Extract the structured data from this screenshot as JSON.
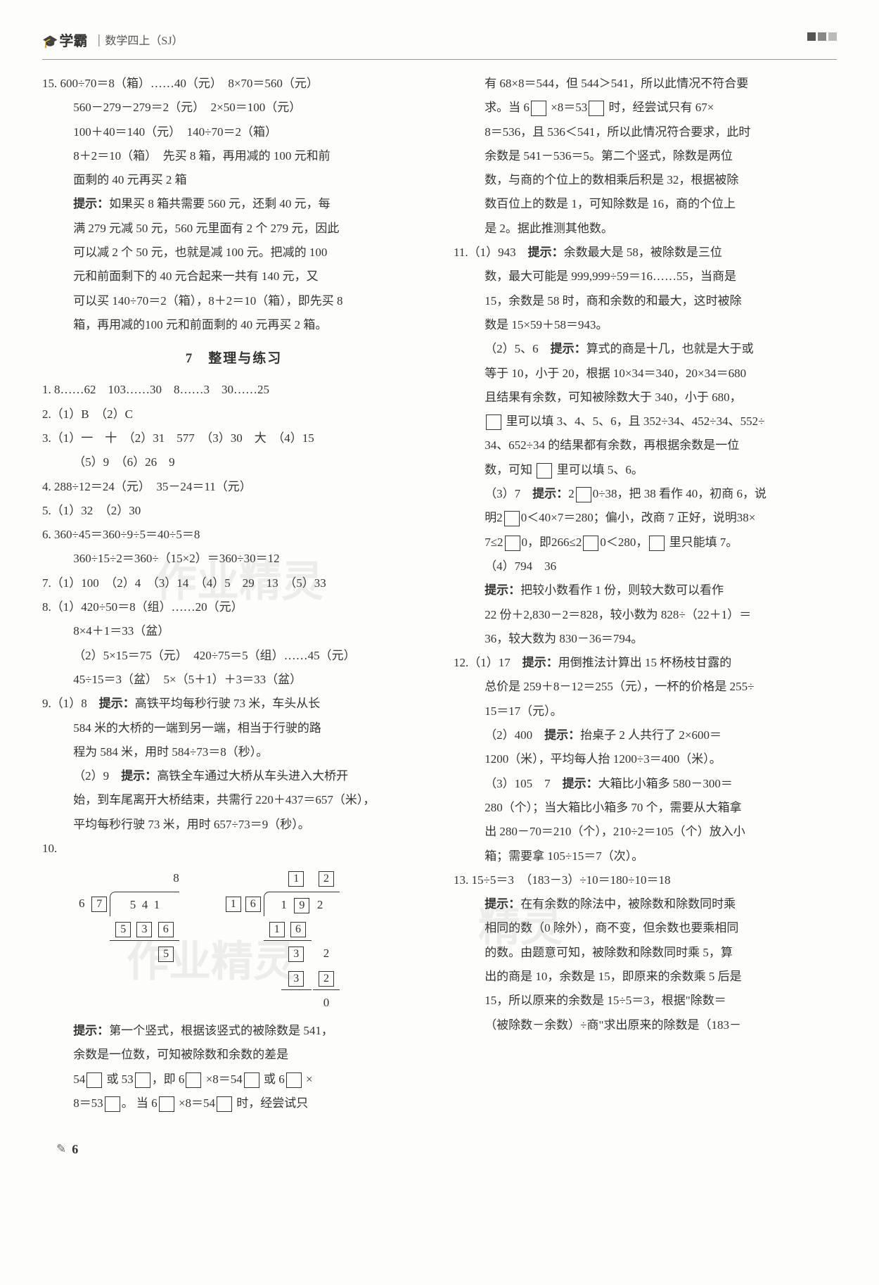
{
  "header": {
    "logo": "学霸",
    "sub": "数学四上（SJ）"
  },
  "footer": {
    "page": "6"
  },
  "left": {
    "q15": {
      "l1": "15. 600÷70＝8（箱）……40（元）　8×70＝560（元）",
      "l2": "560－279－279＝2（元）　2×50＝100（元）",
      "l3": "100＋40＝140（元）　140÷70＝2（箱）",
      "l4": "8＋2＝10（箱）　先买 8 箱，再用减的 100 元和前",
      "l5": "面剩的 40 元再买 2 箱",
      "l6a": "提示：",
      "l6b": "如果买 8 箱共需要 560 元，还剩 40 元，每",
      "l7": "满 279 元减 50 元，560 元里面有 2 个 279 元，因此",
      "l8": "可以减 2 个 50 元，也就是减 100 元。把减的 100",
      "l9": "元和前面剩下的 40 元合起来一共有 140 元，又",
      "l10": "可以买 140÷70＝2（箱），8＋2＝10（箱），即先买 8",
      "l11": "箱，再用减的100 元和前面剩的 40 元再买 2 箱。"
    },
    "sec7": "7　整理与练习",
    "s7": {
      "l1": "1. 8……62　103……30　8……3　30……25",
      "l2": "2.（1）B　（2）C",
      "l3": "3.（1）一　十　（2）31　577　（3）30　大　（4）15",
      "l3b": "（5）9　（6）26　9",
      "l4": "4. 288÷12＝24（元）　35－24＝11（元）",
      "l5": "5.（1）32　（2）30",
      "l6": "6. 360÷45＝360÷9÷5＝40÷5＝8",
      "l6b": "360÷15÷2＝360÷（15×2）＝360÷30＝12",
      "l7": "7.（1）100　（2）4　（3）14　（4）5　29　13　（5）33",
      "l8": "8.（1）420÷50＝8（组）……20（元）",
      "l8b": "8×4＋1＝33（盆）",
      "l8c": "（2）5×15＝75（元）　420÷75＝5（组）……45（元）",
      "l8d": "45÷15＝3（盆）　5×（5＋1）＋3＝33（盆）",
      "l9a": "9.（1）8　",
      "l9a2": "提示：",
      "l9a3": "高铁平均每秒行驶 73 米，车头从长",
      "l9b": "584 米的大桥的一端到另一端，相当于行驶的路",
      "l9c": "程为 584 米，用时 584÷73＝8（秒）。",
      "l9d": "（2）9　",
      "l9d2": "提示：",
      "l9d3": "高铁全车通过大桥从车头进入大桥开",
      "l9e": "始，到车尾离开大桥结束，共需行 220＋437＝657（米），",
      "l9f": "平均每秒行驶 73 米，用时 657÷73＝9（秒）。",
      "l10": "10.",
      "l10hint_a": "提示：",
      "l10hint_b": "第一个竖式，根据该竖式的被除数是 541，",
      "l10c": "余数是一位数，可知被除数和余数的差是",
      "l10d_a": "54",
      "l10d_b": " 或 53",
      "l10d_c": "，即 6",
      "l10d_d": " ×8＝54",
      "l10d_e": " 或 6",
      "l10d_f": " ×",
      "l10e_a": "8＝53",
      "l10e_b": "。 当 6",
      "l10e_c": " ×8＝54",
      "l10e_d": " 时，经尝试只"
    },
    "div1": {
      "quot": "8",
      "divisor_a": "6",
      "divisor_b": "7",
      "dividend": [
        "5",
        "4",
        "1"
      ],
      "row2": [
        "5",
        "3",
        "6"
      ],
      "row3": "5"
    },
    "div2": {
      "quot_a": "1",
      "quot_b": "2",
      "divisor_a": "1",
      "divisor_b": "6",
      "dividend": [
        "1",
        "9",
        "2"
      ],
      "row2": [
        "1",
        "6"
      ],
      "row3": [
        "3",
        "2"
      ],
      "row4": [
        "3",
        "2"
      ],
      "row5": "0"
    }
  },
  "right": {
    "top": {
      "l1": "有 68×8＝544，但 544＞541，所以此情况不符合要",
      "l2a": "求。当 6",
      "l2b": " ×8＝53",
      "l2c": " 时，经尝试只有 67×",
      "l3": "8＝536，且 536＜541，所以此情况符合要求，此时",
      "l4": "余数是 541－536＝5。第二个竖式，除数是两位",
      "l5": "数，与商的个位上的数相乘后积是 32，根据被除",
      "l6": "数百位上的数是 1，可知除数是 16，商的个位上",
      "l7": "是 2。据此推测其他数。"
    },
    "q11": {
      "l1a": "11.（1）943　",
      "l1b": "提示：",
      "l1c": "余数最大是 58，被除数是三位",
      "l2": "数，最大可能是 999,999÷59＝16……55，当商是",
      "l3": "15，余数是 58 时，商和余数的和最大，这时被除",
      "l4": "数是 15×59＋58＝943。",
      "l5a": "（2）5、6　",
      "l5b": "提示：",
      "l5c": "算式的商是十几，也就是大于或",
      "l6": "等于 10，小于 20，根据 10×34＝340，20×34＝680",
      "l7": "且结果有余数，可知被除数大于 340，小于 680，",
      "l8a": " 里可以填 3、4、5、6，且 352÷34、452÷34、552÷",
      "l9": "34、652÷34 的结果都有余数，再根据余数是一位",
      "l10a": "数，可知 ",
      "l10b": " 里可以填 5、6。",
      "l11a": "（3）7　",
      "l11b": "提示：",
      "l11c": "2",
      "l11d": "0÷38，把 38 看作 40，初商 6，说",
      "l12a": "明2",
      "l12b": "0＜40×7＝280；偏小，改商 7 正好，说明38×",
      "l13a": "7≤2",
      "l13b": "0，即266≤2",
      "l13c": "0＜280，",
      "l13d": " 里只能填 7。",
      "l14": "（4）794　36",
      "l15a": "提示：",
      "l15b": "把较小数看作 1 份，则较大数可以看作",
      "l16": "22 份＋2,830－2＝828，较小数为 828÷（22＋1）＝",
      "l17": "36，较大数为 830－36＝794。"
    },
    "q12": {
      "l1a": "12.（1）17　",
      "l1b": "提示：",
      "l1c": "用倒推法计算出 15 杯杨枝甘露的",
      "l2": "总价是 259＋8－12＝255（元），一杯的价格是 255÷",
      "l3": "15＝17（元）。",
      "l4a": "（2）400　",
      "l4b": "提示：",
      "l4c": "抬桌子 2 人共行了 2×600＝",
      "l5": "1200（米），平均每人抬 1200÷3＝400（米）。",
      "l6a": "（3）105　7　",
      "l6b": "提示：",
      "l6c": "大箱比小箱多 580－300＝",
      "l7": "280（个）；当大箱比小箱多 70 个，需要从大箱拿",
      "l8": "出 280－70＝210（个），210÷2＝105（个）放入小",
      "l9": "箱；需要拿 105÷15＝7（次）。"
    },
    "q13": {
      "l1": "13. 15÷5＝3　（183－3）÷10＝180÷10＝18",
      "l2a": "提示：",
      "l2b": "在有余数的除法中，被除数和除数同时乘",
      "l3": "相同的数（0 除外），商不变，但余数也要乘相同",
      "l4": "的数。由题意可知，被除数和除数同时乘 5，算",
      "l5": "出的商是 10，余数是 15，即原来的余数乘 5 后是",
      "l6": "15，所以原来的余数是 15÷5＝3，根据\"除数＝",
      "l7": "（被除数－余数）÷商\"求出原来的除数是（183－"
    }
  }
}
